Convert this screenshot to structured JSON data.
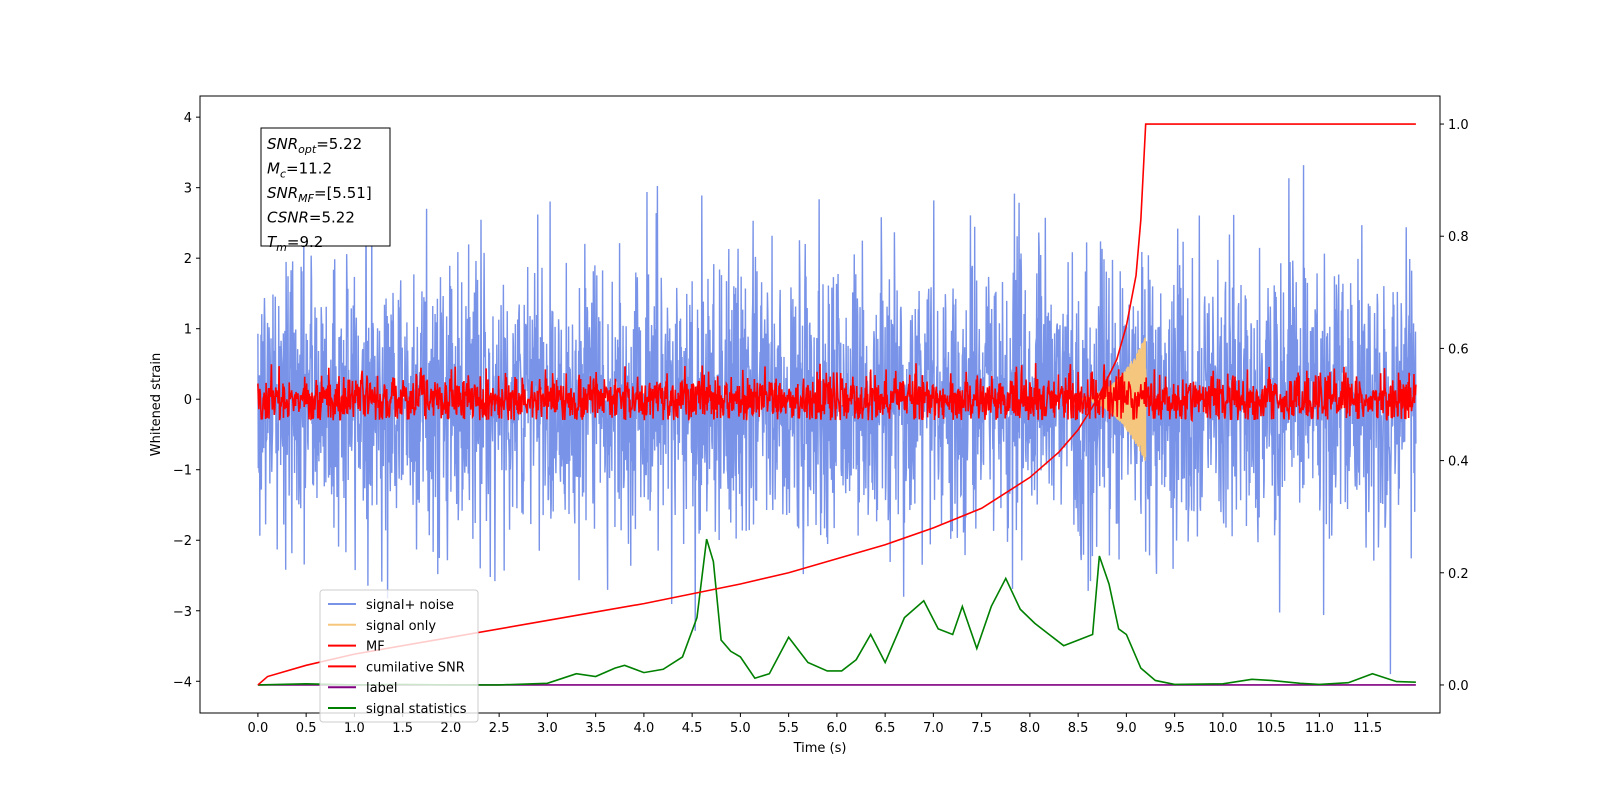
{
  "chart_data": {
    "type": "line",
    "title": "",
    "xlabel": "Time (s)",
    "ylabel": "Whitened strain",
    "y2label": "",
    "xlim": [
      -0.6,
      12.25
    ],
    "ylim": [
      -4.45,
      4.3
    ],
    "y2lim": [
      -0.05,
      1.05
    ],
    "xticks": [
      0.0,
      0.5,
      1.0,
      1.5,
      2.0,
      2.5,
      3.0,
      3.5,
      4.0,
      4.5,
      5.0,
      5.5,
      6.0,
      6.5,
      7.0,
      7.5,
      8.0,
      8.5,
      9.0,
      9.5,
      10.0,
      10.5,
      11.0,
      11.5
    ],
    "xtick_labels": [
      "0.0",
      "0.5",
      "1.0",
      "1.5",
      "2.0",
      "2.5",
      "3.0",
      "3.5",
      "4.0",
      "4.5",
      "5.0",
      "5.5",
      "6.0",
      "6.5",
      "7.0",
      "7.5",
      "8.0",
      "8.5",
      "9.0",
      "9.5",
      "10.0",
      "10.5",
      "11.0",
      "11.5"
    ],
    "yticks": [
      -4,
      -3,
      -2,
      -1,
      0,
      1,
      2,
      3,
      4
    ],
    "ytick_labels": [
      "−4",
      "−3",
      "−2",
      "−1",
      "0",
      "1",
      "2",
      "3",
      "4"
    ],
    "y2ticks": [
      0.0,
      0.2,
      0.4,
      0.6,
      0.8,
      1.0
    ],
    "y2tick_labels": [
      "0.0",
      "0.2",
      "0.4",
      "0.6",
      "0.8",
      "1.0"
    ],
    "grid": false,
    "legend_placement": "lower-left",
    "annotation": {
      "lines": [
        {
          "base": "SNR",
          "sub": "opt",
          "value": "=5.22"
        },
        {
          "base": "M",
          "sub": "c",
          "value": "=11.2"
        },
        {
          "base": "SNR",
          "sub": "MF",
          "value": "=[5.51]"
        },
        {
          "base": "CSNR",
          "sub": "",
          "value": "=5.22"
        },
        {
          "base": "T",
          "sub": "m",
          "value": "=9.2"
        }
      ]
    },
    "series": [
      {
        "name": "signal+ noise",
        "color": "#7893e8",
        "axis": "left",
        "kind": "noise",
        "x_range": [
          0.0,
          12.0
        ],
        "approx_std": 1.0,
        "approx_range": [
          -3.9,
          3.9
        ]
      },
      {
        "name": "signal only",
        "color": "#f5c77e",
        "axis": "left",
        "kind": "chirp",
        "x_range": [
          8.4,
          9.2
        ],
        "peak_time": 9.2,
        "approx_peak_amplitude": 0.9
      },
      {
        "name": "MF",
        "color": "#ff0000",
        "axis": "left",
        "kind": "noise",
        "x_range": [
          0.0,
          12.0
        ],
        "approx_std": 0.18,
        "approx_range": [
          -0.3,
          0.65
        ]
      },
      {
        "name": "cumilative SNR",
        "color": "#ff0000",
        "axis": "right",
        "x": [
          0.0,
          0.1,
          0.5,
          1.0,
          2.0,
          3.0,
          4.0,
          5.0,
          5.5,
          6.0,
          6.5,
          7.0,
          7.5,
          8.0,
          8.3,
          8.5,
          8.7,
          8.9,
          9.0,
          9.1,
          9.15,
          9.2,
          12.0
        ],
        "values": [
          0.0,
          0.015,
          0.035,
          0.055,
          0.085,
          0.115,
          0.145,
          0.18,
          0.2,
          0.225,
          0.25,
          0.28,
          0.315,
          0.37,
          0.415,
          0.455,
          0.51,
          0.58,
          0.64,
          0.73,
          0.83,
          1.0,
          1.0
        ]
      },
      {
        "name": "label",
        "color": "#800080",
        "axis": "right",
        "x": [
          0.0,
          12.0
        ],
        "values": [
          0.0,
          0.0
        ]
      },
      {
        "name": "signal statistics",
        "color": "#008000",
        "axis": "right",
        "x": [
          0.0,
          0.5,
          1.0,
          1.5,
          2.0,
          2.5,
          3.0,
          3.3,
          3.5,
          3.7,
          3.8,
          4.0,
          4.2,
          4.4,
          4.55,
          4.65,
          4.72,
          4.8,
          4.9,
          5.0,
          5.15,
          5.3,
          5.5,
          5.7,
          5.9,
          6.05,
          6.2,
          6.35,
          6.5,
          6.7,
          6.9,
          7.05,
          7.2,
          7.3,
          7.45,
          7.6,
          7.75,
          7.9,
          8.05,
          8.2,
          8.35,
          8.5,
          8.65,
          8.72,
          8.82,
          8.92,
          9.0,
          9.15,
          9.3,
          9.5,
          10.0,
          10.3,
          10.5,
          10.8,
          11.0,
          11.3,
          11.55,
          11.8,
          12.0
        ],
        "values": [
          0.0,
          0.002,
          0.0,
          0.001,
          0.0,
          0.0,
          0.003,
          0.02,
          0.015,
          0.03,
          0.035,
          0.022,
          0.028,
          0.05,
          0.12,
          0.26,
          0.22,
          0.08,
          0.06,
          0.05,
          0.012,
          0.02,
          0.085,
          0.04,
          0.025,
          0.025,
          0.045,
          0.09,
          0.04,
          0.12,
          0.15,
          0.1,
          0.09,
          0.14,
          0.065,
          0.14,
          0.19,
          0.135,
          0.11,
          0.09,
          0.07,
          0.08,
          0.09,
          0.23,
          0.18,
          0.1,
          0.09,
          0.03,
          0.008,
          0.001,
          0.002,
          0.01,
          0.008,
          0.003,
          0.001,
          0.004,
          0.02,
          0.006,
          0.005
        ]
      }
    ]
  }
}
